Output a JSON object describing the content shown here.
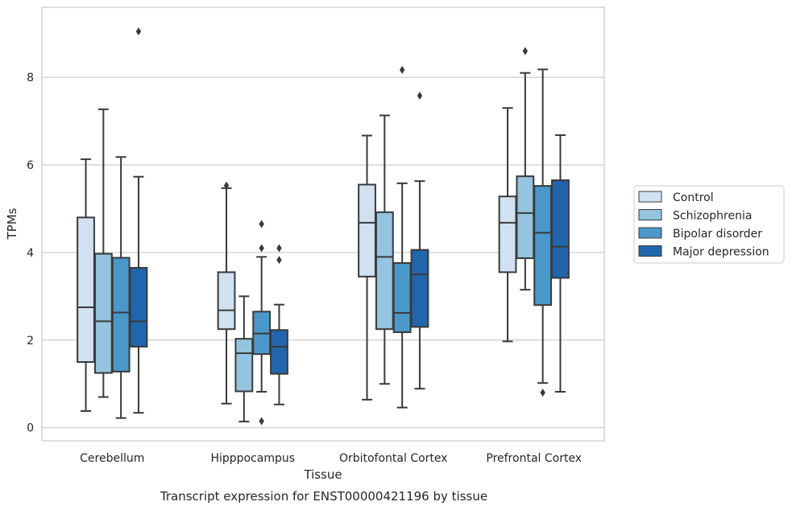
{
  "chart_data": {
    "type": "box",
    "caption": "Transcript expression for ENST00000421196 by tissue",
    "xlabel": "Tissue",
    "ylabel": "TPMs",
    "ylim": [
      -0.3,
      9.6
    ],
    "yticks": [
      0,
      2,
      4,
      6,
      8
    ],
    "grid": "horizontal",
    "legend_position": "right",
    "categories": [
      "Cerebellum",
      "Hipppocampus",
      "Orbitofontal Cortex",
      "Prefrontal Cortex"
    ],
    "series": [
      {
        "name": "Control",
        "color": "#d0e1f2",
        "boxes": [
          {
            "whislo": 0.38,
            "q1": 1.5,
            "med": 2.75,
            "q3": 4.8,
            "whishi": 6.13,
            "fliers": []
          },
          {
            "whislo": 0.55,
            "q1": 2.25,
            "med": 2.68,
            "q3": 3.55,
            "whishi": 5.47,
            "fliers": [
              5.53
            ]
          },
          {
            "whislo": 0.64,
            "q1": 3.45,
            "med": 4.68,
            "q3": 5.55,
            "whishi": 6.67,
            "fliers": []
          },
          {
            "whislo": 1.97,
            "q1": 3.55,
            "med": 4.68,
            "q3": 5.28,
            "whishi": 7.3,
            "fliers": []
          }
        ]
      },
      {
        "name": "Schizophrenia",
        "color": "#94c4df",
        "boxes": [
          {
            "whislo": 0.7,
            "q1": 1.25,
            "med": 2.43,
            "q3": 3.97,
            "whishi": 7.27,
            "fliers": []
          },
          {
            "whislo": 0.14,
            "q1": 0.83,
            "med": 1.7,
            "q3": 2.03,
            "whishi": 3.0,
            "fliers": []
          },
          {
            "whislo": 1.0,
            "q1": 2.25,
            "med": 3.9,
            "q3": 4.92,
            "whishi": 7.13,
            "fliers": []
          },
          {
            "whislo": 3.15,
            "q1": 3.87,
            "med": 4.9,
            "q3": 5.74,
            "whishi": 8.1,
            "fliers": [
              8.6
            ]
          }
        ]
      },
      {
        "name": "Bipolar disorder",
        "color": "#4a98c9",
        "boxes": [
          {
            "whislo": 0.22,
            "q1": 1.28,
            "med": 2.63,
            "q3": 3.88,
            "whishi": 6.18,
            "fliers": []
          },
          {
            "whislo": 0.82,
            "q1": 1.68,
            "med": 2.15,
            "q3": 2.65,
            "whishi": 3.9,
            "fliers": [
              4.65,
              4.1,
              0.15
            ]
          },
          {
            "whislo": 0.46,
            "q1": 2.18,
            "med": 2.62,
            "q3": 3.76,
            "whishi": 5.58,
            "fliers": [
              8.17
            ]
          },
          {
            "whislo": 1.02,
            "q1": 2.8,
            "med": 4.45,
            "q3": 5.52,
            "whishi": 8.18,
            "fliers": [
              0.8
            ]
          }
        ]
      },
      {
        "name": "Major depression",
        "color": "#2166ac",
        "boxes": [
          {
            "whislo": 0.34,
            "q1": 1.85,
            "med": 2.43,
            "q3": 3.65,
            "whishi": 5.73,
            "fliers": [
              9.05
            ]
          },
          {
            "whislo": 0.53,
            "q1": 1.23,
            "med": 1.85,
            "q3": 2.23,
            "whishi": 2.81,
            "fliers": [
              4.1,
              3.83
            ]
          },
          {
            "whislo": 0.89,
            "q1": 2.3,
            "med": 3.5,
            "q3": 4.06,
            "whishi": 5.63,
            "fliers": [
              7.58
            ]
          },
          {
            "whislo": 0.82,
            "q1": 3.42,
            "med": 4.13,
            "q3": 5.65,
            "whishi": 6.68,
            "fliers": []
          }
        ]
      }
    ]
  }
}
